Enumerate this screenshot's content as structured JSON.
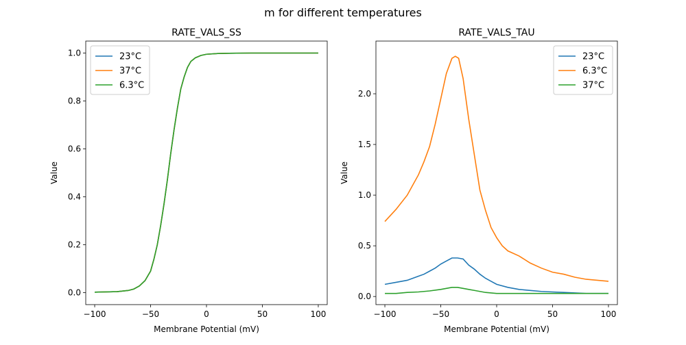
{
  "figure": {
    "suptitle": "m for different temperatures"
  },
  "chart_data": [
    {
      "type": "line",
      "title": "RATE_VALS_SS",
      "xlabel": "Membrane Potential (mV)",
      "ylabel": "Value",
      "xlim": [
        -108,
        108
      ],
      "ylim": [
        -0.05,
        1.05
      ],
      "xticks": [
        -100,
        -50,
        0,
        50,
        100
      ],
      "xtick_labels": [
        "−100",
        "−50",
        "0",
        "50",
        "100"
      ],
      "yticks": [
        0.0,
        0.2,
        0.4,
        0.6,
        0.8,
        1.0
      ],
      "ytick_labels": [
        "0.0",
        "0.2",
        "0.4",
        "0.6",
        "0.8",
        "1.0"
      ],
      "legend": "upper left",
      "series": [
        {
          "name": "23°C",
          "color": "#1f77b4",
          "x": [
            -100,
            -90,
            -80,
            -70,
            -65,
            -60,
            -55,
            -50,
            -47,
            -44,
            -41,
            -38,
            -35,
            -32,
            -29,
            -26,
            -23,
            -20,
            -17,
            -14,
            -10,
            -5,
            0,
            10,
            20,
            40,
            60,
            80,
            100
          ],
          "y": [
            0.002,
            0.003,
            0.004,
            0.009,
            0.015,
            0.028,
            0.05,
            0.09,
            0.14,
            0.2,
            0.28,
            0.37,
            0.47,
            0.58,
            0.68,
            0.77,
            0.85,
            0.9,
            0.94,
            0.965,
            0.98,
            0.99,
            0.995,
            0.998,
            0.999,
            1.0,
            1.0,
            1.0,
            1.0
          ]
        },
        {
          "name": "37°C",
          "color": "#ff7f0e",
          "x": [
            -100,
            -90,
            -80,
            -70,
            -65,
            -60,
            -55,
            -50,
            -47,
            -44,
            -41,
            -38,
            -35,
            -32,
            -29,
            -26,
            -23,
            -20,
            -17,
            -14,
            -10,
            -5,
            0,
            10,
            20,
            40,
            60,
            80,
            100
          ],
          "y": [
            0.002,
            0.003,
            0.004,
            0.009,
            0.015,
            0.028,
            0.05,
            0.09,
            0.14,
            0.2,
            0.28,
            0.37,
            0.47,
            0.58,
            0.68,
            0.77,
            0.85,
            0.9,
            0.94,
            0.965,
            0.98,
            0.99,
            0.995,
            0.998,
            0.999,
            1.0,
            1.0,
            1.0,
            1.0
          ]
        },
        {
          "name": "6.3°C",
          "color": "#2ca02c",
          "x": [
            -100,
            -90,
            -80,
            -70,
            -65,
            -60,
            -55,
            -50,
            -47,
            -44,
            -41,
            -38,
            -35,
            -32,
            -29,
            -26,
            -23,
            -20,
            -17,
            -14,
            -10,
            -5,
            0,
            10,
            20,
            40,
            60,
            80,
            100
          ],
          "y": [
            0.002,
            0.003,
            0.004,
            0.009,
            0.015,
            0.028,
            0.05,
            0.09,
            0.14,
            0.2,
            0.28,
            0.37,
            0.47,
            0.58,
            0.68,
            0.77,
            0.85,
            0.9,
            0.94,
            0.965,
            0.98,
            0.99,
            0.995,
            0.998,
            0.999,
            1.0,
            1.0,
            1.0,
            1.0
          ]
        }
      ]
    },
    {
      "type": "line",
      "title": "RATE_VALS_TAU",
      "xlabel": "Membrane Potential (mV)",
      "ylabel": "Value",
      "xlim": [
        -108,
        108
      ],
      "ylim": [
        -0.08,
        2.52
      ],
      "xticks": [
        -100,
        -50,
        0,
        50,
        100
      ],
      "xtick_labels": [
        "−100",
        "−50",
        "0",
        "50",
        "100"
      ],
      "yticks": [
        0.0,
        0.5,
        1.0,
        1.5,
        2.0
      ],
      "ytick_labels": [
        "0.0",
        "0.5",
        "1.0",
        "1.5",
        "2.0"
      ],
      "legend": "upper right",
      "series": [
        {
          "name": "23°C",
          "color": "#1f77b4",
          "x": [
            -100,
            -90,
            -80,
            -75,
            -70,
            -65,
            -60,
            -55,
            -50,
            -45,
            -40,
            -35,
            -30,
            -25,
            -20,
            -15,
            -10,
            -5,
            0,
            10,
            20,
            30,
            40,
            50,
            60,
            70,
            80,
            90,
            100
          ],
          "y": [
            0.12,
            0.14,
            0.16,
            0.18,
            0.2,
            0.22,
            0.25,
            0.28,
            0.32,
            0.35,
            0.38,
            0.38,
            0.37,
            0.31,
            0.27,
            0.22,
            0.18,
            0.15,
            0.12,
            0.09,
            0.07,
            0.06,
            0.05,
            0.045,
            0.04,
            0.035,
            0.03,
            0.03,
            0.03
          ]
        },
        {
          "name": "6.3°C",
          "color": "#ff7f0e",
          "x": [
            -100,
            -90,
            -80,
            -75,
            -70,
            -65,
            -60,
            -55,
            -50,
            -45,
            -40,
            -37,
            -34,
            -30,
            -25,
            -20,
            -15,
            -10,
            -5,
            0,
            5,
            10,
            20,
            30,
            40,
            50,
            60,
            70,
            80,
            90,
            100
          ],
          "y": [
            0.74,
            0.86,
            1.0,
            1.1,
            1.2,
            1.33,
            1.48,
            1.7,
            1.95,
            2.2,
            2.35,
            2.37,
            2.35,
            2.15,
            1.75,
            1.4,
            1.05,
            0.85,
            0.68,
            0.58,
            0.5,
            0.45,
            0.4,
            0.33,
            0.28,
            0.24,
            0.22,
            0.19,
            0.17,
            0.16,
            0.15
          ]
        },
        {
          "name": "37°C",
          "color": "#2ca02c",
          "x": [
            -100,
            -90,
            -80,
            -70,
            -60,
            -50,
            -45,
            -40,
            -35,
            -30,
            -25,
            -20,
            -15,
            -10,
            0,
            10,
            20,
            40,
            60,
            80,
            100
          ],
          "y": [
            0.03,
            0.03,
            0.04,
            0.045,
            0.055,
            0.07,
            0.08,
            0.09,
            0.09,
            0.08,
            0.07,
            0.06,
            0.05,
            0.04,
            0.03,
            0.03,
            0.03,
            0.03,
            0.03,
            0.03,
            0.03
          ]
        }
      ]
    }
  ]
}
